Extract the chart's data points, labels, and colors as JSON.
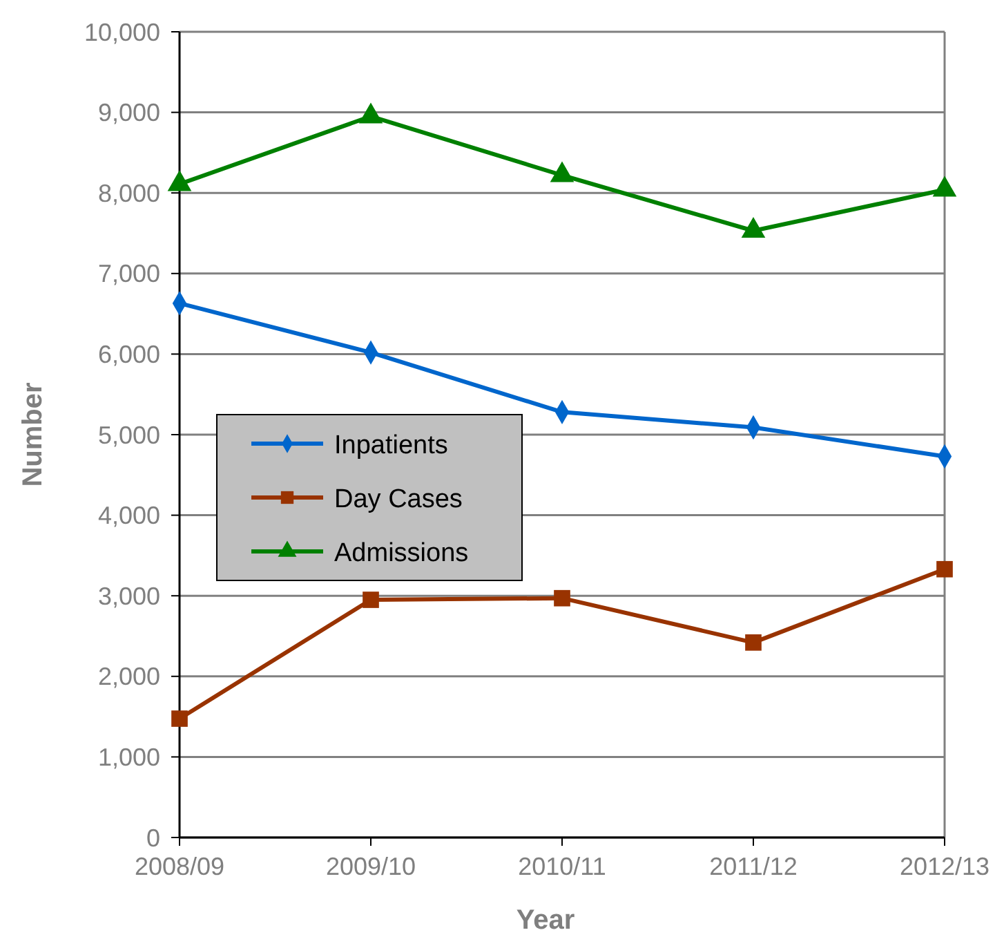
{
  "chart_data": {
    "type": "line",
    "xlabel": "Year",
    "ylabel": "Number",
    "categories": [
      "2008/09",
      "2009/10",
      "2010/11",
      "2011/12",
      "2012/13"
    ],
    "series": [
      {
        "name": "Inpatients",
        "color": "#0066cc",
        "marker": "diamond",
        "values": [
          6630,
          6020,
          5280,
          5090,
          4730
        ]
      },
      {
        "name": "Day Cases",
        "color": "#993300",
        "marker": "square",
        "values": [
          1475,
          2950,
          2970,
          2420,
          3330
        ]
      },
      {
        "name": "Admissions",
        "color": "#008000",
        "marker": "triangle",
        "values": [
          8110,
          8950,
          8220,
          7530,
          8040
        ]
      }
    ],
    "ylim": [
      0,
      10000
    ],
    "yticks": [
      {
        "value": 0,
        "label": "0"
      },
      {
        "value": 1000,
        "label": "1,000"
      },
      {
        "value": 2000,
        "label": "2,000"
      },
      {
        "value": 3000,
        "label": "3,000"
      },
      {
        "value": 4000,
        "label": "4,000"
      },
      {
        "value": 5000,
        "label": "5,000"
      },
      {
        "value": 6000,
        "label": "6,000"
      },
      {
        "value": 7000,
        "label": "7,000"
      },
      {
        "value": 8000,
        "label": "8,000"
      },
      {
        "value": 9000,
        "label": "9,000"
      },
      {
        "value": 10000,
        "label": "10,000"
      }
    ],
    "grid": "y",
    "legend": "center left"
  }
}
